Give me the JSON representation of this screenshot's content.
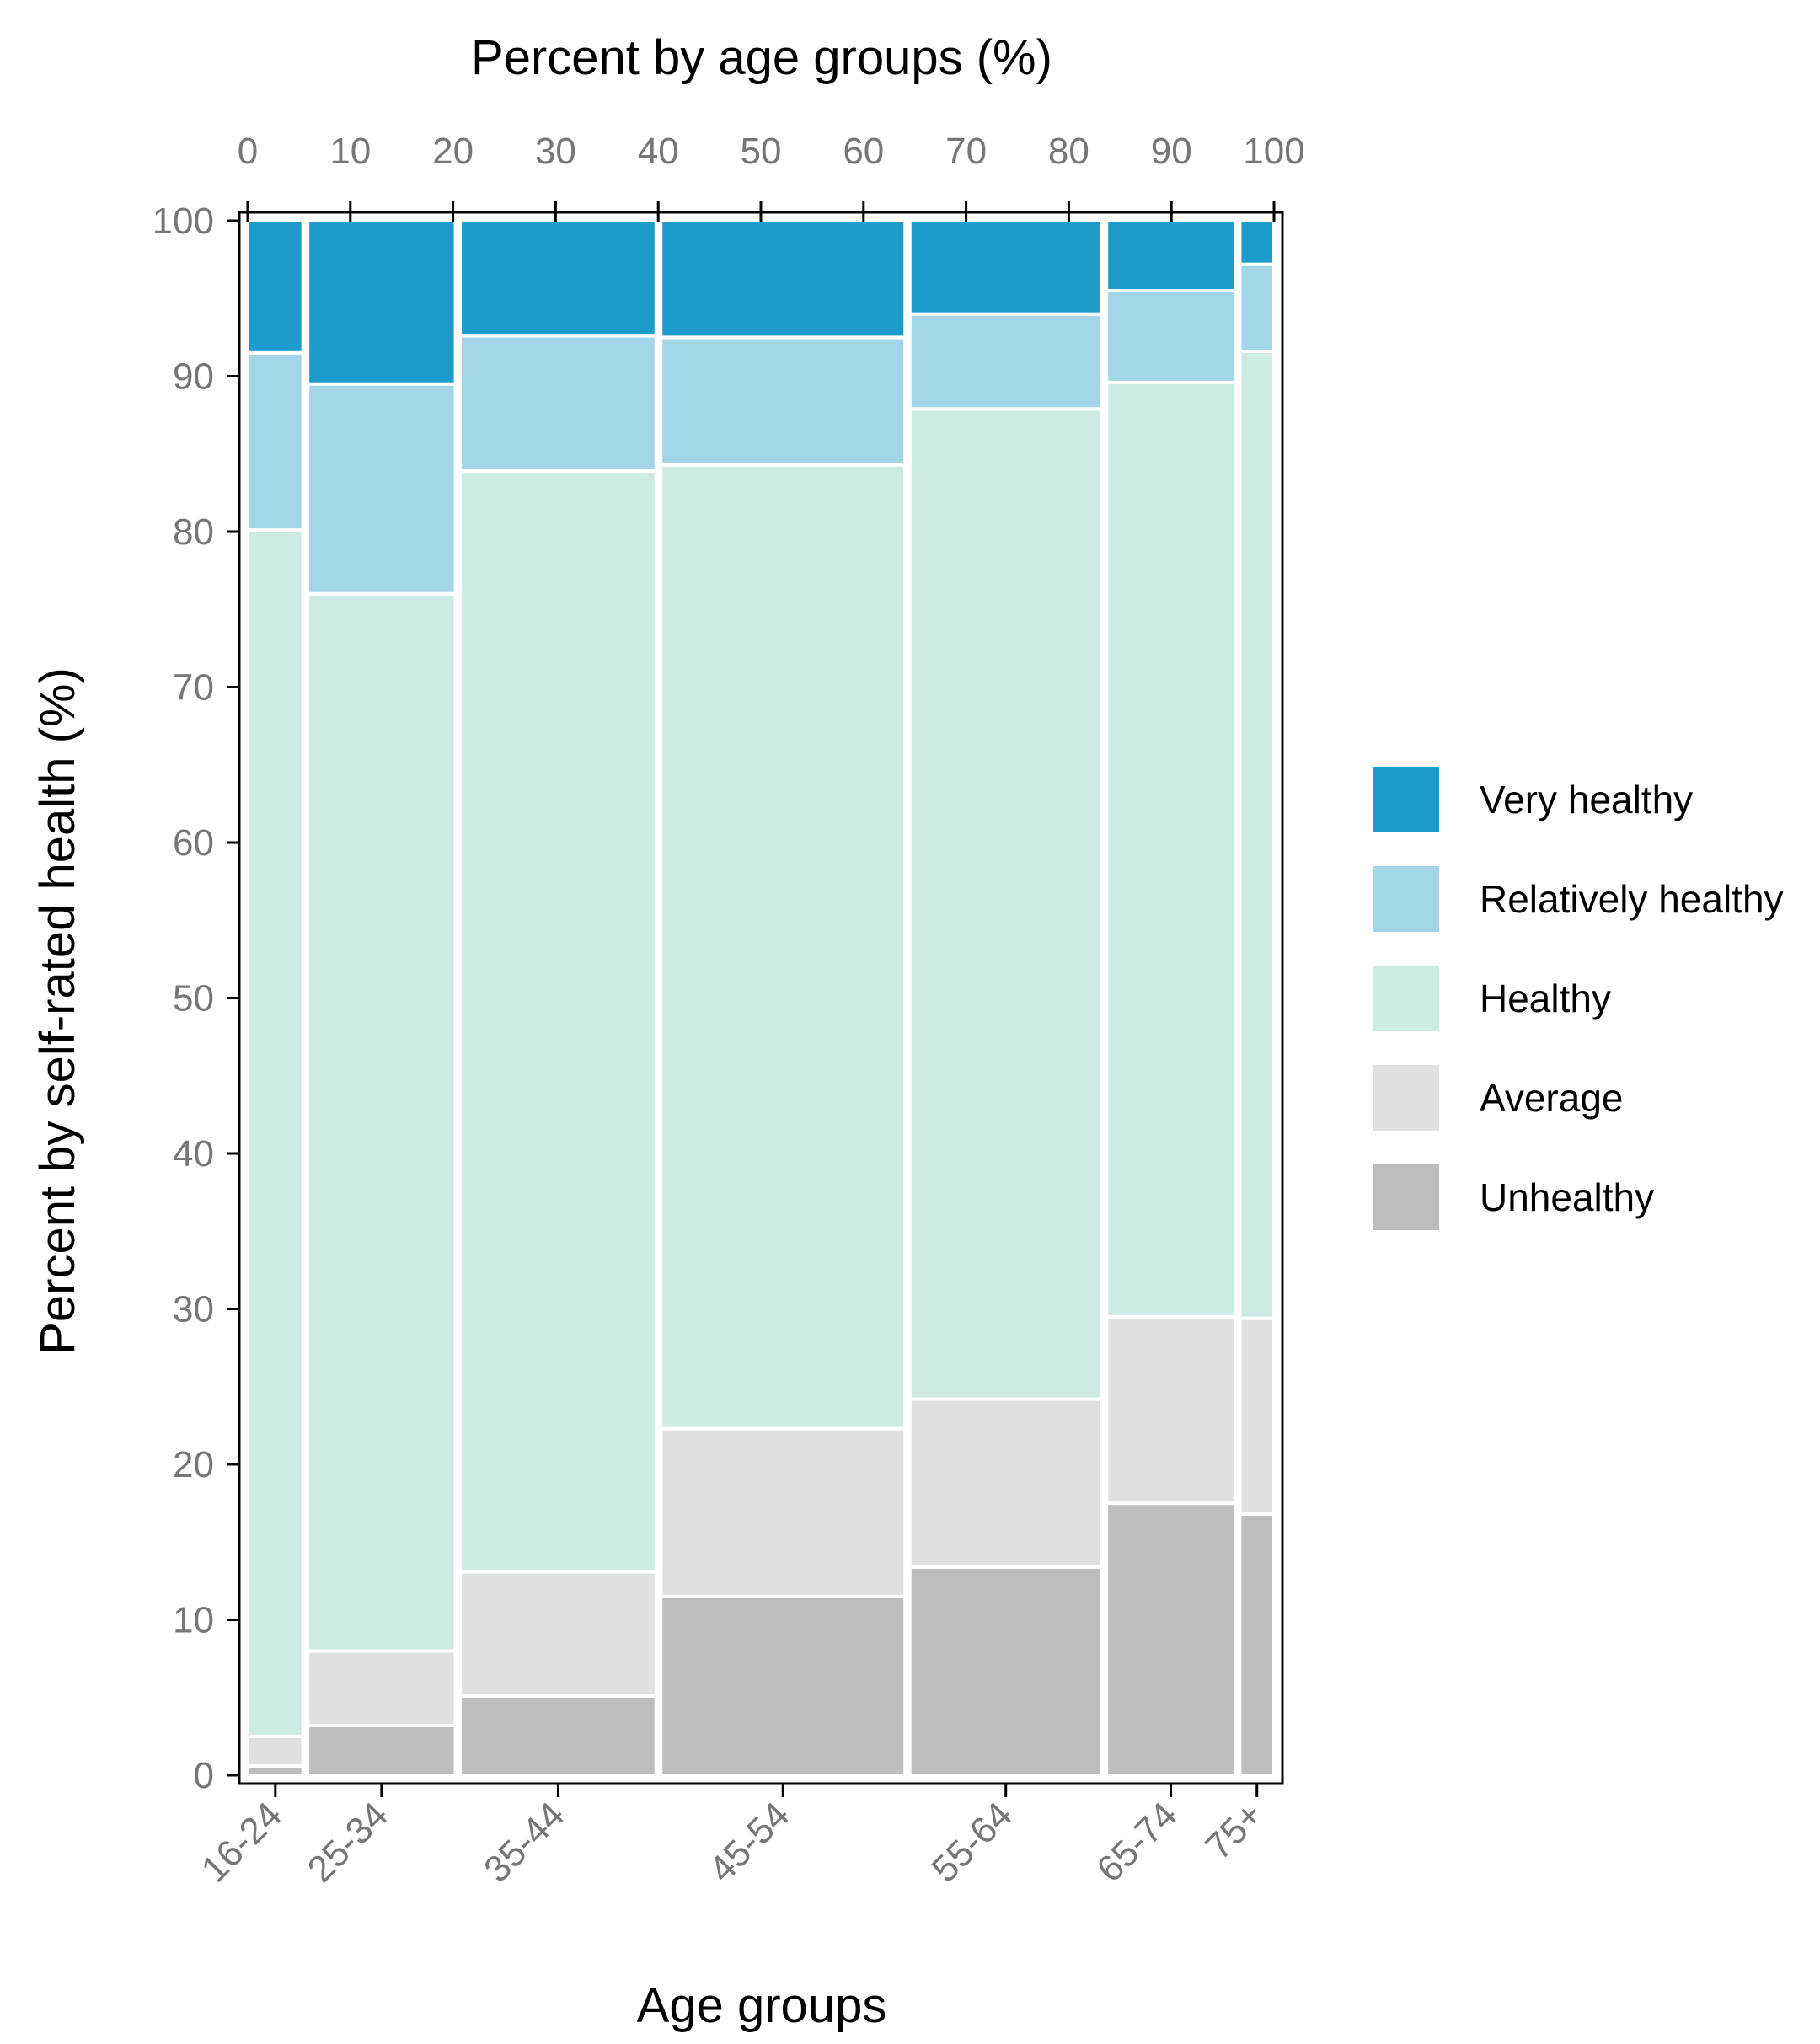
{
  "chart_data": {
    "type": "mosaic",
    "title": "",
    "top_axis_label": "Percent by age groups (%)",
    "xlabel": "Age groups",
    "ylabel": "Percent by self-rated health (%)",
    "x_ticks": [
      "0",
      "10",
      "20",
      "30",
      "40",
      "50",
      "60",
      "70",
      "80",
      "90",
      "100"
    ],
    "y_ticks": [
      "0",
      "10",
      "20",
      "30",
      "40",
      "50",
      "60",
      "70",
      "80",
      "90",
      "100"
    ],
    "x_range": [
      0,
      100
    ],
    "y_range": [
      0,
      100
    ],
    "legend": "right",
    "categories": [
      "16-24",
      "25-34",
      "35-44",
      "45-54",
      "55-64",
      "65-74",
      "75+"
    ],
    "column_widths_percent": [
      5.5,
      14.7,
      19.5,
      24.3,
      19.1,
      12.8,
      3.4
    ],
    "series": [
      {
        "name": "Unhealthy",
        "color": "#bdbdbd",
        "values": [
          0.6,
          3.2,
          5.1,
          11.5,
          13.4,
          17.5,
          16.8
        ]
      },
      {
        "name": "Average",
        "color": "#e0e0e0",
        "values": [
          1.9,
          4.8,
          8.0,
          10.8,
          10.8,
          12.0,
          12.6
        ]
      },
      {
        "name": "Healthy",
        "color": "#cdeae4",
        "values": [
          77.6,
          68.0,
          70.8,
          62.0,
          63.7,
          60.1,
          62.2
        ]
      },
      {
        "name": "Relatively healthy",
        "color": "#a3d5e8",
        "values": [
          11.4,
          13.5,
          8.7,
          8.2,
          6.1,
          5.9,
          5.6
        ]
      },
      {
        "name": "Very healthy",
        "color": "#1e9bcd",
        "values": [
          8.5,
          10.5,
          7.4,
          7.5,
          6.0,
          4.5,
          2.8
        ]
      }
    ],
    "legend_order": [
      "Very healthy",
      "Relatively healthy",
      "Healthy",
      "Average",
      "Unhealthy"
    ]
  }
}
